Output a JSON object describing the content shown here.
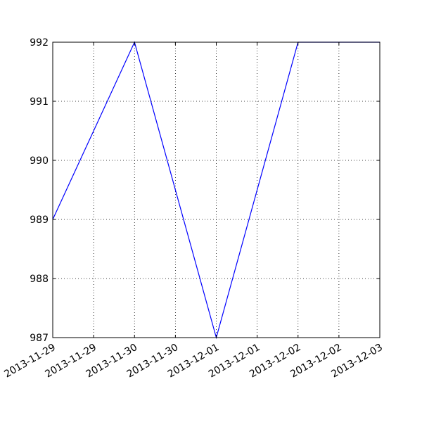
{
  "chart_data": {
    "type": "line",
    "title": "",
    "xlabel": "",
    "ylabel": "",
    "x": [
      "2013-11-29 00:00",
      "2013-11-30 00:00",
      "2013-12-01 00:00",
      "2013-12-02 00:00",
      "2013-12-03 00:00"
    ],
    "series": [
      {
        "values": [
          989,
          992,
          987,
          992,
          992
        ],
        "color": "#0000ff"
      }
    ],
    "xlim": [
      "2013-11-29 00:00",
      "2013-12-03 00:00"
    ],
    "ylim": [
      987,
      992
    ],
    "x_ticks": [
      {
        "at": "2013-11-29 00:00",
        "label": "2013-11-29"
      },
      {
        "at": "2013-11-29 12:00",
        "label": "2013-11-29"
      },
      {
        "at": "2013-11-30 00:00",
        "label": "2013-11-30"
      },
      {
        "at": "2013-11-30 12:00",
        "label": "2013-11-30"
      },
      {
        "at": "2013-12-01 00:00",
        "label": "2013-12-01"
      },
      {
        "at": "2013-12-01 12:00",
        "label": "2013-12-01"
      },
      {
        "at": "2013-12-02 00:00",
        "label": "2013-12-02"
      },
      {
        "at": "2013-12-02 12:00",
        "label": "2013-12-02"
      },
      {
        "at": "2013-12-03 00:00",
        "label": "2013-12-03"
      }
    ],
    "y_ticks": [
      {
        "value": 987,
        "label": "987"
      },
      {
        "value": 988,
        "label": "988"
      },
      {
        "value": 989,
        "label": "989"
      },
      {
        "value": 990,
        "label": "990"
      },
      {
        "value": 991,
        "label": "991"
      },
      {
        "value": 992,
        "label": "992"
      }
    ],
    "x_tick_rotation_deg": 30,
    "grid": true,
    "legend": "none"
  }
}
